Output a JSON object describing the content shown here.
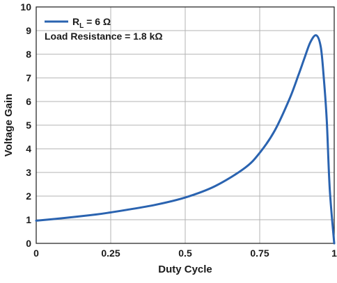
{
  "chart_data": {
    "type": "line",
    "title": "",
    "xlabel": "Duty Cycle",
    "ylabel": "Voltage Gain",
    "xlim": [
      0,
      1
    ],
    "ylim": [
      0,
      10
    ],
    "xticks": [
      0,
      0.25,
      0.5,
      0.75,
      1
    ],
    "xtick_labels": [
      "0",
      "0.25",
      "0.5",
      "0.75",
      "1"
    ],
    "yticks": [
      0,
      1,
      2,
      3,
      4,
      5,
      6,
      7,
      8,
      9,
      10
    ],
    "ytick_labels": [
      "0",
      "1",
      "2",
      "3",
      "4",
      "5",
      "6",
      "7",
      "8",
      "9",
      "10"
    ],
    "grid": true,
    "legend_position": "top-left",
    "legend": {
      "series_label_main": "R",
      "series_label_sub": "L",
      "series_label_value": " = 6 Ω",
      "annotation": "Load Resistance = 1.8 kΩ"
    },
    "series": [
      {
        "color": "#2a63b0",
        "x": [
          0,
          0.1,
          0.2,
          0.25,
          0.3,
          0.4,
          0.5,
          0.6,
          0.7,
          0.75,
          0.8,
          0.85,
          0.88,
          0.9,
          0.92,
          0.94,
          0.955,
          0.965,
          0.975,
          0.985,
          1.0
        ],
        "y": [
          0.96,
          1.08,
          1.22,
          1.31,
          1.41,
          1.63,
          1.94,
          2.42,
          3.19,
          3.83,
          4.76,
          6.11,
          7.12,
          7.83,
          8.51,
          8.8,
          8.3,
          7.0,
          5.2,
          2.3,
          0.0
        ]
      }
    ]
  }
}
